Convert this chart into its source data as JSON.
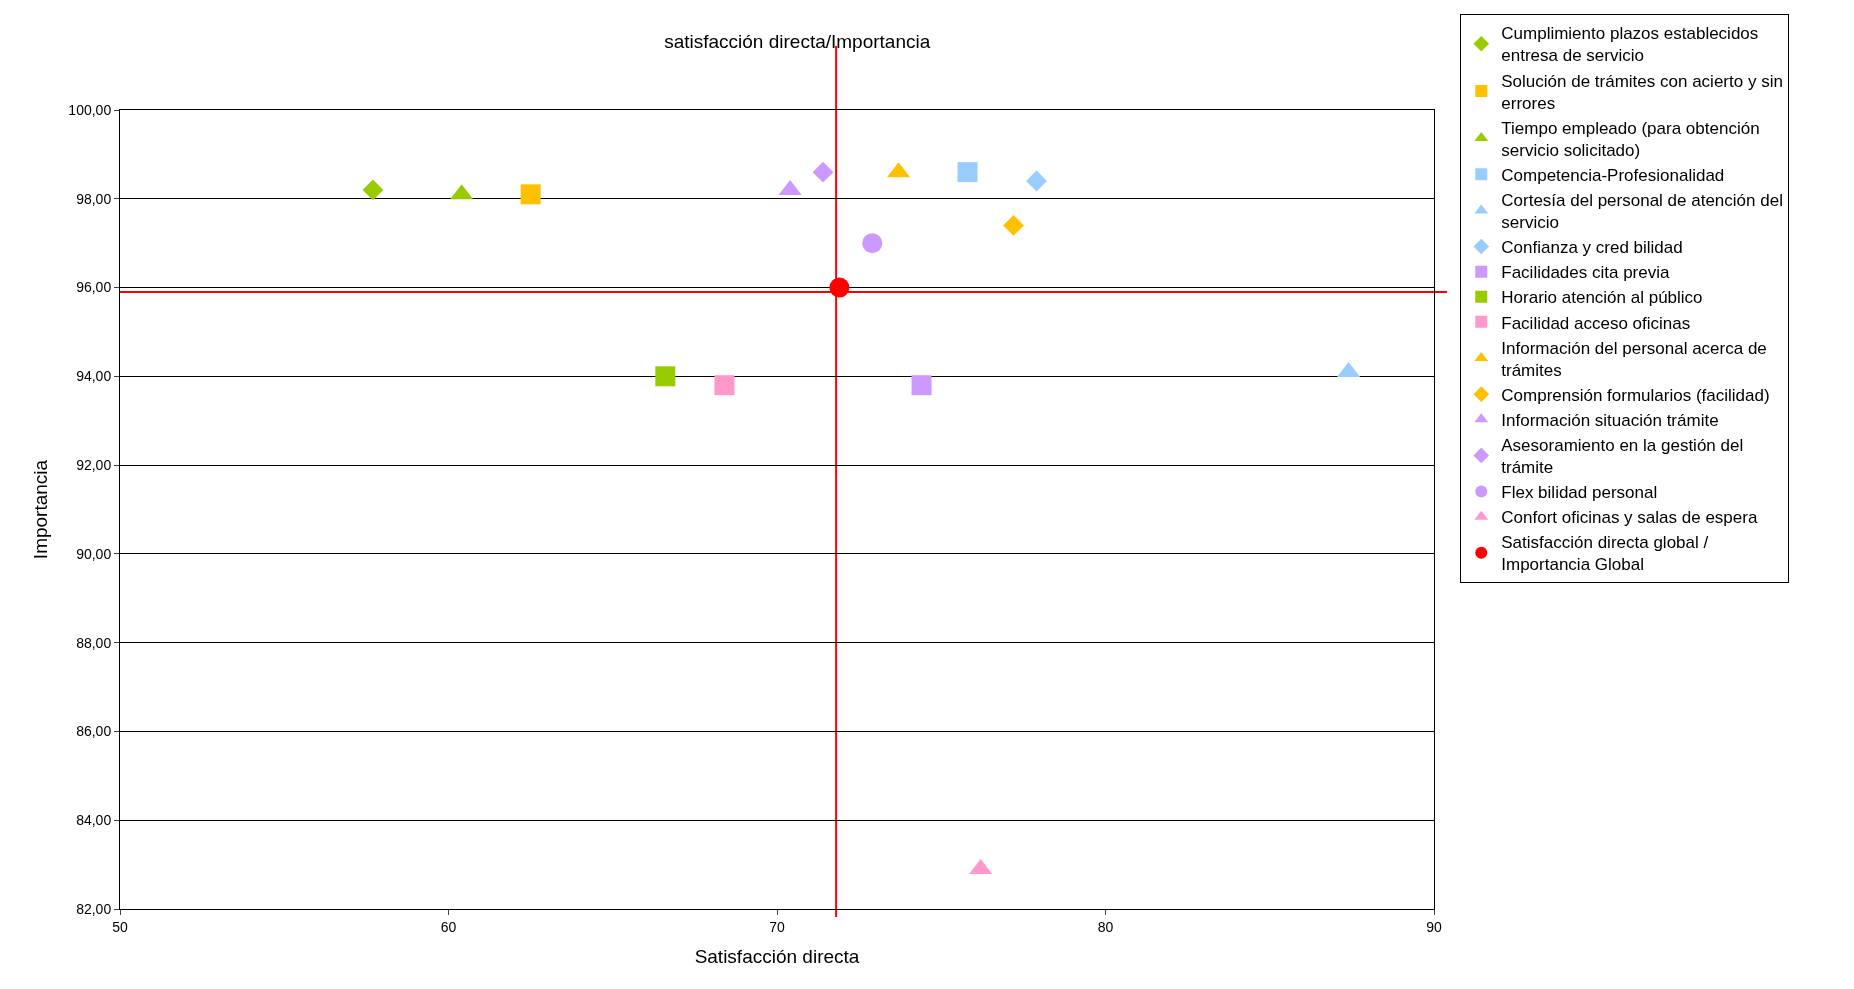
{
  "chart_data": {
    "type": "scatter",
    "title": "satisfacción directa/Importancia",
    "xlabel": "Satisfacción directa",
    "ylabel": "Importancia",
    "xlim": [
      50,
      90
    ],
    "xticks": [
      50,
      60,
      70,
      80,
      90
    ],
    "ylim": [
      82,
      100
    ],
    "yticks": [
      {
        "value": 82,
        "label": "82,00"
      },
      {
        "value": 84,
        "label": "84,00"
      },
      {
        "value": 86,
        "label": "86,00"
      },
      {
        "value": 88,
        "label": "88,00"
      },
      {
        "value": 90,
        "label": "90,00"
      },
      {
        "value": 92,
        "label": "92,00"
      },
      {
        "value": 94,
        "label": "94,00"
      },
      {
        "value": 96,
        "label": "96,00"
      },
      {
        "value": 98,
        "label": "98,00"
      },
      {
        "value": 100,
        "label": "100,00"
      }
    ],
    "grid": "y",
    "legend": "right",
    "series": [
      {
        "name": "Cumplimiento plazos establecidos entresa de servicio",
        "color": "#99cc00",
        "marker": "diamond",
        "x": [
          57.7
        ],
        "values": [
          98.2
        ]
      },
      {
        "name": "Solución de trámites con acierto y sin errores",
        "color": "#ffc000",
        "marker": "square",
        "x": [
          62.5
        ],
        "values": [
          98.1
        ]
      },
      {
        "name": "Tiempo empleado (para obtención servicio solicitado)",
        "color": "#99cc00",
        "marker": "triangle",
        "x": [
          60.4
        ],
        "values": [
          98.1
        ]
      },
      {
        "name": "Competencia-Profesionalidad",
        "color": "#99ccff",
        "marker": "square",
        "x": [
          75.8
        ],
        "values": [
          98.6
        ]
      },
      {
        "name": "Cortesía del personal de atención del servicio",
        "color": "#99ccff",
        "marker": "triangle",
        "x": [
          87.4
        ],
        "values": [
          94.1
        ]
      },
      {
        "name": "Confianza y cred bilidad",
        "color": "#99ccff",
        "marker": "diamond",
        "x": [
          77.9
        ],
        "values": [
          98.4
        ]
      },
      {
        "name": "Facilidades cita previa",
        "color": "#cc99ff",
        "marker": "square",
        "x": [
          74.4
        ],
        "values": [
          93.8
        ]
      },
      {
        "name": "Horario atención al público",
        "color": "#99cc00",
        "marker": "square",
        "x": [
          66.6
        ],
        "values": [
          94.0
        ]
      },
      {
        "name": "Facilidad acceso oficinas",
        "color": "#ff99cc",
        "marker": "square",
        "x": [
          68.4
        ],
        "values": [
          93.8
        ]
      },
      {
        "name": "Información del personal acerca de trámites",
        "color": "#ffc000",
        "marker": "triangle",
        "x": [
          73.7
        ],
        "values": [
          98.6
        ]
      },
      {
        "name": "Comprensión formularios (facilidad)",
        "color": "#ffc000",
        "marker": "diamond",
        "x": [
          77.2
        ],
        "values": [
          97.4
        ]
      },
      {
        "name": "Información situación trámite",
        "color": "#cc99ff",
        "marker": "triangle",
        "x": [
          70.4
        ],
        "values": [
          98.2
        ]
      },
      {
        "name": "Asesoramiento en la gestión del trámite",
        "color": "#cc99ff",
        "marker": "diamond",
        "x": [
          71.4
        ],
        "values": [
          98.6
        ]
      },
      {
        "name": "Flex bilidad personal",
        "color": "#cc99ff",
        "marker": "circle",
        "x": [
          72.9
        ],
        "values": [
          97.0
        ]
      },
      {
        "name": "Confort oficinas y salas de espera",
        "color": "#ff99cc",
        "marker": "triangle",
        "x": [
          76.2
        ],
        "values": [
          82.9
        ]
      },
      {
        "name": "Satisfacción directa global / Importancia Global",
        "color": "#ff0000",
        "marker": "circle",
        "x": [
          71.9
        ],
        "values": [
          96.0
        ]
      }
    ],
    "ref_lines": [
      {
        "axis": "x",
        "value": 71.8,
        "color": "#ff0000"
      },
      {
        "axis": "y",
        "value": 95.9,
        "color": "#ff0000"
      }
    ]
  }
}
